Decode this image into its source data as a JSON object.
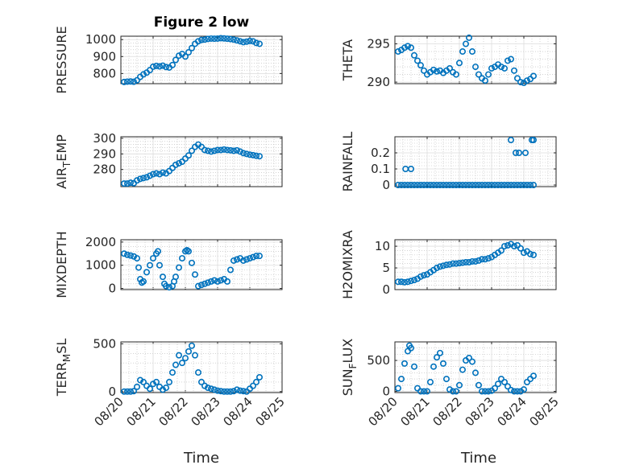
{
  "figure": {
    "title": "Figure 2 low",
    "xlabel": "Time"
  },
  "colors": {
    "marker": "#0072BD",
    "axis": "#262626",
    "grid": "#b8b8b8"
  },
  "chart_data": [
    {
      "name": "pressure",
      "type": "scatter",
      "ylabel": "PRESSURE",
      "xlim": [
        20,
        25
      ],
      "ylim": [
        740,
        1020
      ],
      "yticks": [
        800,
        900,
        1000
      ],
      "xticks": [
        "08/20",
        "08/21",
        "08/22",
        "08/23",
        "08/24",
        "08/25"
      ],
      "show_xticklabels": false,
      "x": [
        20.1,
        20.2,
        20.3,
        20.4,
        20.5,
        20.6,
        20.7,
        20.8,
        20.9,
        21.0,
        21.1,
        21.2,
        21.3,
        21.4,
        21.5,
        21.6,
        21.7,
        21.8,
        21.9,
        22.0,
        22.1,
        22.2,
        22.3,
        22.4,
        22.5,
        22.6,
        22.7,
        22.8,
        22.9,
        23.0,
        23.1,
        23.2,
        23.3,
        23.4,
        23.5,
        23.6,
        23.7,
        23.8,
        23.9,
        24.0,
        24.1,
        24.2,
        24.3
      ],
      "y": [
        750,
        752,
        753,
        751,
        760,
        780,
        795,
        805,
        820,
        840,
        845,
        842,
        846,
        838,
        835,
        850,
        880,
        905,
        915,
        900,
        925,
        950,
        975,
        990,
        998,
        1000,
        1004,
        1006,
        1005,
        1006,
        1008,
        1007,
        1005,
        1003,
        1000,
        995,
        990,
        985,
        988,
        992,
        990,
        980,
        975
      ]
    },
    {
      "name": "theta",
      "type": "scatter",
      "ylabel": "THETA",
      "xlim": [
        20,
        25
      ],
      "ylim": [
        289.8,
        296
      ],
      "yticks": [
        290,
        295
      ],
      "xticks": [
        "08/20",
        "08/21",
        "08/22",
        "08/23",
        "08/24",
        "08/25"
      ],
      "show_xticklabels": false,
      "x": [
        20.1,
        20.2,
        20.3,
        20.4,
        20.5,
        20.6,
        20.7,
        20.8,
        20.9,
        21.0,
        21.1,
        21.2,
        21.3,
        21.4,
        21.5,
        21.6,
        21.7,
        21.8,
        21.9,
        22.0,
        22.1,
        22.2,
        22.3,
        22.4,
        22.5,
        22.6,
        22.7,
        22.8,
        22.9,
        23.0,
        23.1,
        23.2,
        23.3,
        23.4,
        23.5,
        23.6,
        23.7,
        23.8,
        23.9,
        24.0,
        24.1,
        24.2,
        24.3
      ],
      "y": [
        294.0,
        294.2,
        294.5,
        294.7,
        294.5,
        293.5,
        292.8,
        292.2,
        291.5,
        291.0,
        291.3,
        291.6,
        291.4,
        291.5,
        291.2,
        291.5,
        291.8,
        291.3,
        291.0,
        292.5,
        294.0,
        295.0,
        295.8,
        294.0,
        292.0,
        291.0,
        290.5,
        290.2,
        291.0,
        291.8,
        292.0,
        292.3,
        292.0,
        291.8,
        292.8,
        293.0,
        291.5,
        290.5,
        290.0,
        289.9,
        290.2,
        290.4,
        290.8
      ]
    },
    {
      "name": "air_temp",
      "type": "scatter",
      "ylabel": "AIR",
      "ylabel_sub": "T",
      "ylabel_rest": "EMP",
      "xlim": [
        20,
        25
      ],
      "ylim": [
        269,
        301
      ],
      "yticks": [
        280,
        290,
        300
      ],
      "xticks": [
        "08/20",
        "08/21",
        "08/22",
        "08/23",
        "08/24",
        "08/25"
      ],
      "show_xticklabels": false,
      "x": [
        20.1,
        20.2,
        20.3,
        20.4,
        20.5,
        20.6,
        20.7,
        20.8,
        20.9,
        21.0,
        21.1,
        21.2,
        21.3,
        21.4,
        21.5,
        21.6,
        21.7,
        21.8,
        21.9,
        22.0,
        22.1,
        22.2,
        22.3,
        22.4,
        22.5,
        22.6,
        22.7,
        22.8,
        22.9,
        23.0,
        23.1,
        23.2,
        23.3,
        23.4,
        23.5,
        23.6,
        23.7,
        23.8,
        23.9,
        24.0,
        24.1,
        24.2,
        24.3
      ],
      "y": [
        271,
        271,
        271.5,
        271.2,
        273,
        274,
        274.5,
        275,
        276,
        277,
        277.5,
        277,
        278,
        277.5,
        279,
        281,
        283,
        284,
        285,
        287,
        289,
        292,
        294.5,
        296,
        294.5,
        292.5,
        292,
        291.5,
        292,
        292.5,
        292.5,
        292.8,
        292.5,
        292.3,
        292,
        292.3,
        291.5,
        290.5,
        290,
        289.5,
        289.2,
        288.8,
        288.5
      ]
    },
    {
      "name": "rainfall",
      "type": "scatter",
      "ylabel": "RAINFALL",
      "xlim": [
        20,
        25
      ],
      "ylim": [
        -0.01,
        0.3
      ],
      "yticks": [
        0,
        0.1,
        0.2
      ],
      "xticks": [
        "08/20",
        "08/21",
        "08/22",
        "08/23",
        "08/24",
        "08/25"
      ],
      "show_xticklabels": false,
      "x": [
        20.1,
        20.2,
        20.3,
        20.4,
        20.5,
        20.6,
        20.7,
        20.8,
        20.9,
        21.0,
        21.1,
        21.2,
        21.3,
        21.4,
        21.5,
        21.6,
        21.7,
        21.8,
        21.9,
        22.0,
        22.1,
        22.2,
        22.3,
        22.4,
        22.5,
        22.6,
        22.7,
        22.8,
        22.9,
        23.0,
        23.1,
        23.2,
        23.3,
        23.4,
        23.5,
        23.6,
        23.7,
        23.8,
        23.9,
        24.0,
        24.1,
        24.2,
        24.3,
        20.33,
        20.5,
        23.6,
        23.75,
        23.85,
        24.05,
        24.25,
        24.3
      ],
      "y": [
        0,
        0,
        0,
        0,
        0,
        0,
        0,
        0,
        0,
        0,
        0,
        0,
        0,
        0,
        0,
        0,
        0,
        0,
        0,
        0,
        0,
        0,
        0,
        0,
        0,
        0,
        0,
        0,
        0,
        0,
        0,
        0,
        0,
        0,
        0,
        0,
        0,
        0,
        0,
        0,
        0,
        0,
        0,
        0.1,
        0.1,
        0.28,
        0.2,
        0.2,
        0.2,
        0.28,
        0.28
      ]
    },
    {
      "name": "mixdepth",
      "type": "scatter",
      "ylabel": "MIXDEPTH",
      "xlim": [
        20,
        25
      ],
      "ylim": [
        -50,
        2100
      ],
      "yticks": [
        0,
        1000,
        2000
      ],
      "xticks": [
        "08/20",
        "08/21",
        "08/22",
        "08/23",
        "08/24",
        "08/25"
      ],
      "show_xticklabels": false,
      "x": [
        20.1,
        20.2,
        20.3,
        20.4,
        20.5,
        20.55,
        20.6,
        20.65,
        20.7,
        20.8,
        20.9,
        21.0,
        21.1,
        21.15,
        21.2,
        21.3,
        21.35,
        21.4,
        21.5,
        21.6,
        21.65,
        21.7,
        21.8,
        21.9,
        22.0,
        22.05,
        22.1,
        22.2,
        22.3,
        22.4,
        22.5,
        22.6,
        22.7,
        22.8,
        22.9,
        23.0,
        23.1,
        23.2,
        23.3,
        23.4,
        23.5,
        23.6,
        23.7,
        23.8,
        23.9,
        24.0,
        24.1,
        24.2,
        24.3
      ],
      "y": [
        1500,
        1450,
        1420,
        1380,
        1300,
        900,
        400,
        250,
        300,
        700,
        1000,
        1300,
        1500,
        1600,
        1000,
        500,
        200,
        100,
        50,
        100,
        300,
        500,
        900,
        1300,
        1600,
        1650,
        1600,
        1100,
        600,
        100,
        150,
        200,
        250,
        300,
        350,
        300,
        350,
        400,
        300,
        800,
        1200,
        1250,
        1300,
        1200,
        1250,
        1300,
        1350,
        1400,
        1400
      ]
    },
    {
      "name": "h2omixra",
      "type": "scatter",
      "ylabel": "H2OMIXRA",
      "xlim": [
        20,
        25
      ],
      "ylim": [
        0,
        11.5
      ],
      "yticks": [
        0,
        5,
        10
      ],
      "xticks": [
        "08/20",
        "08/21",
        "08/22",
        "08/23",
        "08/24",
        "08/25"
      ],
      "show_xticklabels": false,
      "x": [
        20.1,
        20.2,
        20.3,
        20.4,
        20.5,
        20.6,
        20.7,
        20.8,
        20.9,
        21.0,
        21.1,
        21.2,
        21.3,
        21.4,
        21.5,
        21.6,
        21.7,
        21.8,
        21.9,
        22.0,
        22.1,
        22.2,
        22.3,
        22.4,
        22.5,
        22.6,
        22.7,
        22.8,
        22.9,
        23.0,
        23.1,
        23.2,
        23.3,
        23.4,
        23.5,
        23.6,
        23.7,
        23.8,
        23.9,
        24.0,
        24.1,
        24.2,
        24.3
      ],
      "y": [
        1.8,
        1.8,
        1.7,
        1.8,
        2,
        2.2,
        2.5,
        3,
        3.3,
        3.5,
        4,
        4.5,
        5,
        5.3,
        5.5,
        5.7,
        5.8,
        6,
        6,
        6.1,
        6.2,
        6.3,
        6.3,
        6.5,
        6.5,
        6.7,
        7,
        7,
        7.2,
        7.5,
        8,
        8.5,
        9,
        10,
        10.2,
        10.5,
        10,
        10.2,
        9.5,
        8.5,
        8.8,
        8.2,
        8
      ]
    },
    {
      "name": "terr_msl",
      "type": "scatter",
      "ylabel": "TERR",
      "ylabel_sub": "M",
      "ylabel_rest": "SL",
      "xlim": [
        20,
        25
      ],
      "ylim": [
        -10,
        520
      ],
      "yticks": [
        0,
        500
      ],
      "xticks": [
        "08/20",
        "08/21",
        "08/22",
        "08/23",
        "08/24",
        "08/25"
      ],
      "show_xticklabels": true,
      "x": [
        20.1,
        20.2,
        20.3,
        20.4,
        20.5,
        20.6,
        20.7,
        20.8,
        20.9,
        21.0,
        21.1,
        21.2,
        21.3,
        21.4,
        21.5,
        21.6,
        21.7,
        21.8,
        21.9,
        22.0,
        22.1,
        22.2,
        22.3,
        22.4,
        22.5,
        22.6,
        22.7,
        22.8,
        22.9,
        23.0,
        23.1,
        23.2,
        23.3,
        23.4,
        23.5,
        23.6,
        23.7,
        23.8,
        23.9,
        24.0,
        24.1,
        24.2,
        24.3
      ],
      "y": [
        0,
        0,
        0,
        5,
        50,
        120,
        100,
        60,
        30,
        80,
        100,
        50,
        20,
        40,
        100,
        200,
        280,
        380,
        300,
        350,
        420,
        480,
        380,
        200,
        100,
        60,
        40,
        30,
        20,
        10,
        5,
        0,
        0,
        0,
        5,
        20,
        10,
        5,
        0,
        30,
        60,
        100,
        150
      ]
    },
    {
      "name": "sun_flux",
      "type": "scatter",
      "ylabel": "SUN",
      "ylabel_sub": "F",
      "ylabel_rest": "LUX",
      "xlim": [
        20,
        25
      ],
      "ylim": [
        -20,
        800
      ],
      "yticks": [
        0,
        500
      ],
      "xticks": [
        "08/20",
        "08/21",
        "08/22",
        "08/23",
        "08/24",
        "08/25"
      ],
      "show_xticklabels": true,
      "x": [
        20.1,
        20.2,
        20.3,
        20.4,
        20.45,
        20.5,
        20.6,
        20.7,
        20.8,
        20.9,
        21.0,
        21.1,
        21.2,
        21.3,
        21.4,
        21.5,
        21.6,
        21.7,
        21.8,
        21.9,
        22.0,
        22.1,
        22.2,
        22.3,
        22.4,
        22.5,
        22.6,
        22.7,
        22.8,
        22.9,
        23.0,
        23.1,
        23.2,
        23.3,
        23.4,
        23.5,
        23.6,
        23.7,
        23.8,
        23.9,
        24.0,
        24.1,
        24.2,
        24.3
      ],
      "y": [
        50,
        200,
        450,
        650,
        740,
        700,
        400,
        50,
        0,
        0,
        0,
        150,
        400,
        550,
        620,
        450,
        200,
        30,
        0,
        0,
        100,
        350,
        500,
        540,
        480,
        300,
        100,
        0,
        0,
        0,
        10,
        50,
        120,
        200,
        150,
        80,
        20,
        0,
        0,
        0,
        30,
        150,
        200,
        250
      ]
    }
  ]
}
